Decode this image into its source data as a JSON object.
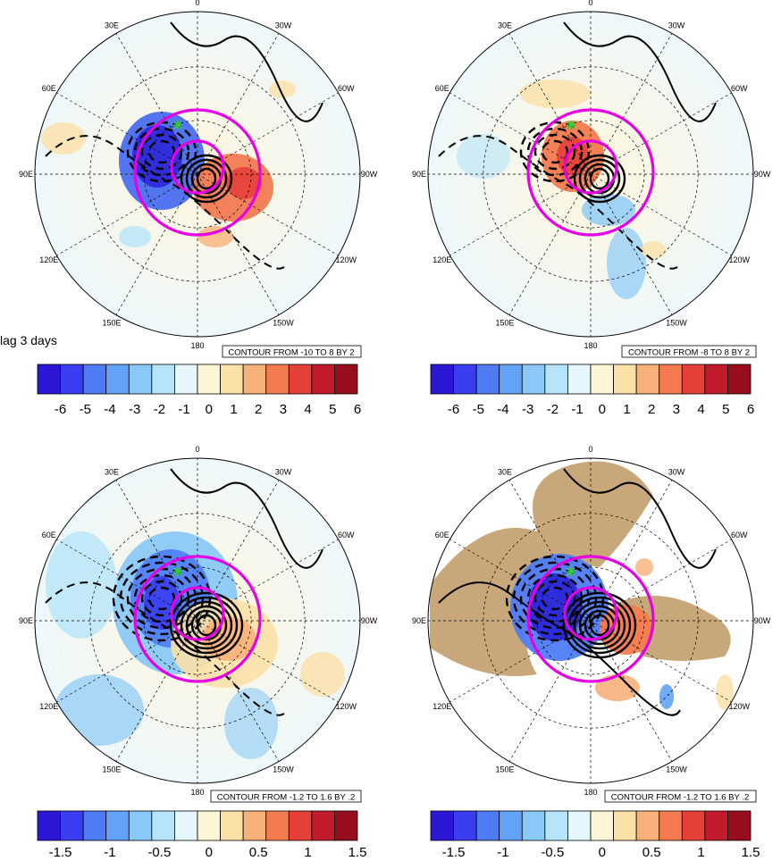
{
  "figure_label": "lag 3 days",
  "lon_labels": [
    "0",
    "30W",
    "60W",
    "90W",
    "120W",
    "150W",
    "180",
    "150E",
    "120E",
    "90E",
    "60E",
    "30E"
  ],
  "panels": [
    {
      "id": "top-left",
      "contour_info": "CONTOUR FROM -10 TO 8 BY 2",
      "colorbar": {
        "labels": [
          "-6",
          "-5",
          "-4",
          "-3",
          "-2",
          "-1",
          "0",
          "1",
          "2",
          "3",
          "4",
          "5",
          "6"
        ],
        "colors": [
          "#2d17d6",
          "#3a3ef0",
          "#4f7cf5",
          "#62a3f7",
          "#8ac9f6",
          "#b6e5f9",
          "#e5f7fc",
          "#fdf6d6",
          "#fbe0a8",
          "#f8b07a",
          "#f47b4f",
          "#e5403a",
          "#c21b2c",
          "#970d1d"
        ]
      }
    },
    {
      "id": "top-right",
      "contour_info": "CONTOUR FROM -8 TO 8 BY 2",
      "colorbar": {
        "labels": [
          "-6",
          "-5",
          "-4",
          "-3",
          "-2",
          "-1",
          "0",
          "1",
          "2",
          "3",
          "4",
          "5",
          "6"
        ],
        "colors": [
          "#2d17d6",
          "#3a3ef0",
          "#4f7cf5",
          "#62a3f7",
          "#8ac9f6",
          "#b6e5f9",
          "#e5f7fc",
          "#fdf6d6",
          "#fbe0a8",
          "#f8b07a",
          "#f47b4f",
          "#e5403a",
          "#c21b2c",
          "#970d1d"
        ]
      }
    },
    {
      "id": "bottom-left",
      "contour_info": "CONTOUR FROM -1.2 TO 1.6 BY .2",
      "colorbar": {
        "labels": [
          "-1.5",
          "-1",
          "-0.5",
          "0",
          "0.5",
          "1",
          "1.5"
        ],
        "colors": [
          "#2d17d6",
          "#3a3ef0",
          "#4f7cf5",
          "#62a3f7",
          "#8ac9f6",
          "#b6e5f9",
          "#e5f7fc",
          "#fdf6d6",
          "#fbe0a8",
          "#f8b07a",
          "#f47b4f",
          "#e5403a",
          "#c21b2c",
          "#970d1d"
        ]
      }
    },
    {
      "id": "bottom-right",
      "contour_info": "CONTOUR FROM -1.2 TO 1.6 BY .2",
      "land_mask": true,
      "colorbar": {
        "labels": [
          "-1.5",
          "-1",
          "-0.5",
          "0",
          "0.5",
          "1",
          "1.5"
        ],
        "colors": [
          "#2d17d6",
          "#3a3ef0",
          "#4f7cf5",
          "#62a3f7",
          "#8ac9f6",
          "#b6e5f9",
          "#e5f7fc",
          "#fdf6d6",
          "#fbe0a8",
          "#f8b07a",
          "#f47b4f",
          "#e5403a",
          "#c21b2c",
          "#970d1d"
        ]
      }
    }
  ],
  "colors": {
    "ring": "#e600e6",
    "marker": "#33cc33",
    "land": "#c8a87a",
    "contour": "#000000"
  }
}
